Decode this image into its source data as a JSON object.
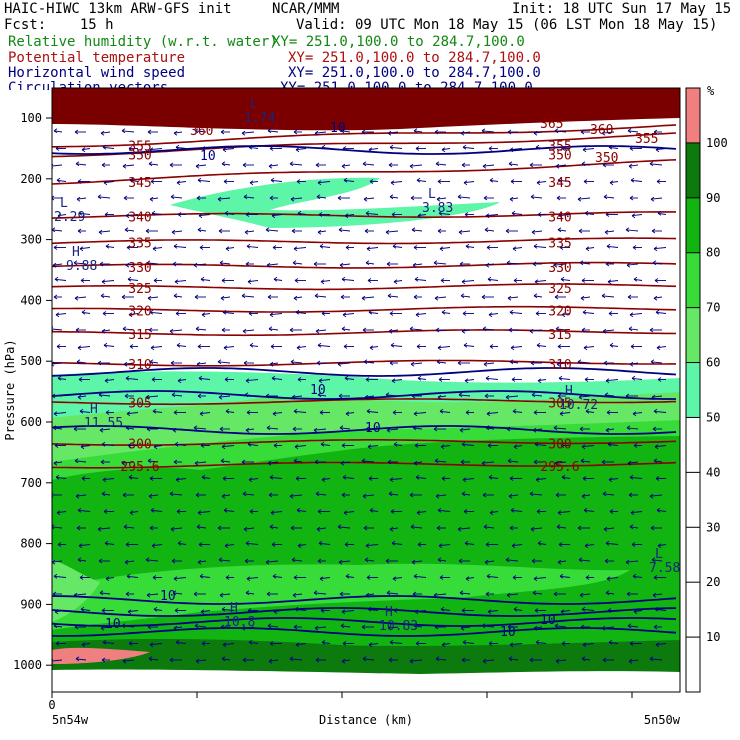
{
  "header": {
    "title": "HAIC-HIWC 13km ARW-GFS init",
    "org": "NCAR/MMM",
    "init": "Init: 18 UTC Sun 17 May 15",
    "fcst": "Fcst:    15 h",
    "valid": "Valid: 09 UTC Mon 18 May 15 (06 LST Mon 18 May 15)",
    "fields": [
      {
        "name": "Relative humidity (w.r.t. water)",
        "xy": "XY= 251.0,100.0 to 284.7,100.0",
        "color": "#118811"
      },
      {
        "name": "Potential temperature",
        "xy": "XY= 251.0,100.0 to 284.7,100.0",
        "color": "#aa1111"
      },
      {
        "name": "Horizontal wind speed",
        "xy": "XY= 251.0,100.0 to 284.7,100.0",
        "color": "#000080"
      },
      {
        "name": "Circulation vectors",
        "xy": "XY= 251.0,100.0 to 284.7,100.0",
        "color": "#000080"
      }
    ]
  },
  "chart_data": {
    "type": "heatmap",
    "ylabel": "Pressure (hPa)",
    "xlabel": "Distance (km)",
    "x_start_label": "5n54w",
    "x_end_label": "5n50w",
    "x_zero_label": "0",
    "yticks": [
      100,
      200,
      300,
      400,
      500,
      600,
      700,
      800,
      900,
      1000
    ],
    "colorbar": {
      "unit": "%",
      "levels": [
        10,
        20,
        30,
        40,
        50,
        60,
        70,
        80,
        90,
        100
      ],
      "colors": [
        "#ffffff",
        "#ffffff",
        "#ffffff",
        "#ffffff",
        "#ffffff",
        "#5df5a8",
        "#66e866",
        "#38dc38",
        "#11b411",
        "#0c7a0c",
        "#f08080"
      ]
    },
    "theta_contours": [
      {
        "label": "355",
        "p": 145
      },
      {
        "label": "350",
        "p": 160
      },
      {
        "label": "345",
        "p": 205
      },
      {
        "label": "340",
        "p": 262
      },
      {
        "label": "335",
        "p": 305
      },
      {
        "label": "330",
        "p": 345
      },
      {
        "label": "325",
        "p": 380
      },
      {
        "label": "320",
        "p": 417
      },
      {
        "label": "315",
        "p": 455
      },
      {
        "label": "310",
        "p": 505
      },
      {
        "label": "305",
        "p": 568
      },
      {
        "label": "300",
        "p": 635
      },
      {
        "label": "295.6",
        "p": 672
      }
    ],
    "theta_upper_labels": [
      "360",
      "365",
      "360",
      "355",
      "350"
    ],
    "wind_labels": [
      "10",
      "10",
      "10",
      "10",
      "10",
      "10",
      "10",
      "10",
      "10"
    ],
    "extrema": [
      {
        "type": "L",
        "value": "2.29"
      },
      {
        "type": "L",
        "value": "3.83"
      },
      {
        "type": "H",
        "value": "9.88"
      },
      {
        "type": "H",
        "value": "11.55"
      },
      {
        "type": "H",
        "value": "10.72"
      },
      {
        "type": "L",
        "value": "7.58"
      },
      {
        "type": "H",
        "value": "10.8"
      },
      {
        "type": "H",
        "value": "10.83"
      },
      {
        "type": "L",
        "value": "1.74"
      }
    ],
    "theta_color": "#8b0000",
    "wind_color": "#000080"
  }
}
